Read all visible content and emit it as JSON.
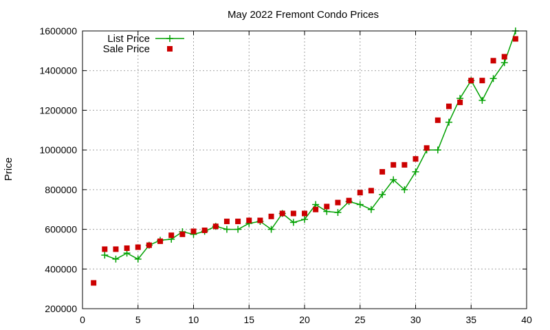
{
  "chart_data": {
    "type": "line",
    "title": "May 2022 Fremont Condo Prices",
    "xlabel": "",
    "ylabel": "Price",
    "xlim": [
      0,
      40
    ],
    "ylim": [
      200000,
      1600000
    ],
    "xticks": [
      0,
      5,
      10,
      15,
      20,
      25,
      30,
      35,
      40
    ],
    "yticks": [
      200000,
      400000,
      600000,
      800000,
      1000000,
      1200000,
      1400000,
      1600000
    ],
    "grid": true,
    "legend": "top-left",
    "series": [
      {
        "name": "List Price",
        "style": "line-plus",
        "color": "#00a000",
        "x": [
          2,
          3,
          4,
          5,
          6,
          7,
          8,
          9,
          10,
          11,
          12,
          13,
          14,
          15,
          16,
          17,
          18,
          19,
          20,
          21,
          22,
          23,
          24,
          25,
          26,
          27,
          28,
          29,
          30,
          31,
          32,
          33,
          34,
          35,
          36,
          37,
          38,
          39
        ],
        "values": [
          470000,
          450000,
          480000,
          450000,
          520000,
          545000,
          550000,
          588000,
          575000,
          590000,
          615000,
          600000,
          600000,
          630000,
          640000,
          600000,
          680000,
          635000,
          650000,
          725000,
          690000,
          685000,
          740000,
          725000,
          700000,
          775000,
          850000,
          800000,
          890000,
          1000000,
          1000000,
          1140000,
          1260000,
          1350000,
          1250000,
          1360000,
          1440000,
          1600000
        ]
      },
      {
        "name": "Sale Price",
        "style": "points-square",
        "color": "#cc0000",
        "x": [
          1,
          2,
          3,
          4,
          5,
          6,
          7,
          8,
          9,
          10,
          11,
          12,
          13,
          14,
          15,
          16,
          17,
          18,
          19,
          20,
          21,
          22,
          23,
          24,
          25,
          26,
          27,
          28,
          29,
          30,
          31,
          32,
          33,
          34,
          35,
          36,
          37,
          38,
          39
        ],
        "values": [
          330000,
          500000,
          500000,
          505000,
          510000,
          520000,
          540000,
          570000,
          575000,
          590000,
          595000,
          615000,
          640000,
          640000,
          645000,
          645000,
          665000,
          680000,
          680000,
          680000,
          700000,
          715000,
          735000,
          745000,
          785000,
          795000,
          890000,
          925000,
          925000,
          955000,
          1010000,
          1150000,
          1220000,
          1240000,
          1350000,
          1350000,
          1450000,
          1470000,
          1560000
        ]
      }
    ]
  }
}
